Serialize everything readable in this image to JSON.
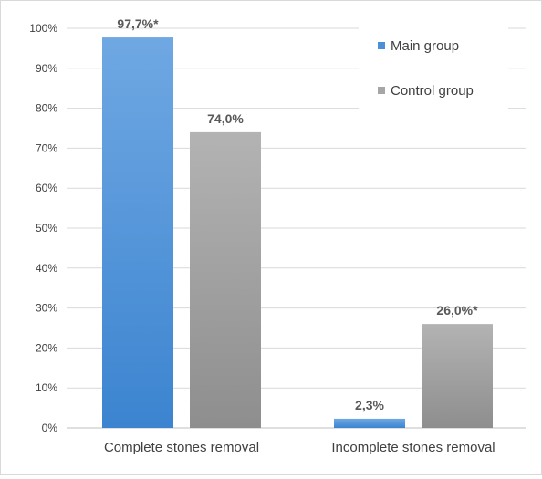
{
  "chart_data": {
    "type": "bar",
    "categories": [
      "Complete stones removal",
      "Incomplete stones removal"
    ],
    "series": [
      {
        "name": "Main group",
        "values": [
          97.7,
          2.3
        ],
        "labels": [
          "97,7%*",
          "2,3%"
        ],
        "color": "#4a90d9"
      },
      {
        "name": "Control group",
        "values": [
          74.0,
          26.0
        ],
        "labels": [
          "74,0%",
          "26,0%*"
        ],
        "color": "#a6a6a6"
      }
    ],
    "ylim": [
      0,
      100
    ],
    "yticks": [
      0,
      10,
      20,
      30,
      40,
      50,
      60,
      70,
      80,
      90,
      100
    ],
    "ytick_labels": [
      "0%",
      "10%",
      "20%",
      "30%",
      "40%",
      "50%",
      "60%",
      "70%",
      "80%",
      "90%",
      "100%"
    ],
    "grid": true,
    "legend_position": "top-right"
  }
}
